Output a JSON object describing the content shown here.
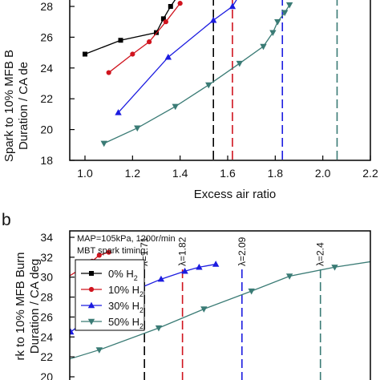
{
  "chart_data": [
    {
      "type": "line",
      "panel_label": "",
      "xlabel": "Excess air ratio",
      "ylabel_lines": [
        "Spark to 10% MFB B",
        "Duration / CA de"
      ],
      "xlim": [
        0.9,
        2.2
      ],
      "ylim": [
        18,
        28.6
      ],
      "x_ticks": [
        1.0,
        1.2,
        1.4,
        1.6,
        1.8,
        2.0,
        2.2
      ],
      "x_tick_labels": [
        "1.0",
        "1.2",
        "1.4",
        "1.6",
        "1.8",
        "2.0",
        "2.2"
      ],
      "y_ticks": [
        18,
        20,
        22,
        24,
        26,
        28
      ],
      "y_tick_labels": [
        "18",
        "20",
        "22",
        "24",
        "26",
        "28"
      ],
      "series": [
        {
          "name": "0% H2",
          "color": "#000000",
          "marker": "square",
          "x": [
            1.0,
            1.15,
            1.3,
            1.33,
            1.36,
            1.4
          ],
          "y": [
            24.9,
            25.8,
            26.3,
            27.2,
            28.0,
            28.9
          ]
        },
        {
          "name": "10% H2",
          "color": "#d0141e",
          "marker": "circle",
          "x": [
            1.1,
            1.2,
            1.27,
            1.34,
            1.4
          ],
          "y": [
            23.7,
            24.9,
            25.7,
            27.0,
            28.2
          ]
        },
        {
          "name": "30% H2",
          "color": "#1c1ce0",
          "marker": "triangle-up",
          "x": [
            1.14,
            1.35,
            1.54,
            1.62,
            1.66
          ],
          "y": [
            21.1,
            24.7,
            27.1,
            28.0,
            29.0
          ]
        },
        {
          "name": "50% H2",
          "color": "#3a7b75",
          "marker": "triangle-down",
          "x": [
            1.08,
            1.22,
            1.38,
            1.52,
            1.65,
            1.75,
            1.79,
            1.81,
            1.84,
            1.86
          ],
          "y": [
            19.1,
            20.1,
            21.5,
            22.9,
            24.3,
            25.4,
            26.3,
            27.0,
            27.6,
            28.1
          ]
        }
      ],
      "vlines": [
        {
          "x": 1.54,
          "color": "#000000"
        },
        {
          "x": 1.62,
          "color": "#d0141e"
        },
        {
          "x": 1.83,
          "color": "#1c1ce0"
        },
        {
          "x": 2.06,
          "color": "#3a7b75"
        }
      ]
    },
    {
      "type": "line",
      "panel_label": "b",
      "ylabel_lines": [
        "rk to 10% MFB Burn",
        "Duration / CA deg"
      ],
      "ylim": [
        20,
        34
      ],
      "y_ticks": [
        20,
        22,
        24,
        26,
        28,
        30,
        32,
        34
      ],
      "y_tick_labels": [
        "20",
        "22",
        "24",
        "26",
        "28",
        "30",
        "32",
        "34"
      ],
      "annotations": [
        "MAP=105kPa, 1200r/min",
        "MBT spark timing"
      ],
      "series": [
        {
          "name": "0% H2",
          "color": "#000000",
          "marker": "square",
          "x": [
            -0.12,
            -0.07,
            -0.01,
            0.04,
            0.16,
            0.22,
            0.28,
            0.32,
            0.38,
            0.42,
            0.47,
            0.53,
            0.58,
            0.63,
            0.7,
            0.74,
            0.78,
            0.82,
            0.86,
            0.9
          ],
          "y": [
            20.0,
            20.4,
            20.9,
            21.5,
            22.9,
            23.7,
            24.4,
            25.1,
            25.9,
            26.6,
            27.3,
            28.1,
            28.8,
            29.6,
            30.4,
            31.0,
            31.6,
            32.1,
            32.5,
            32.8
          ]
        },
        {
          "name": "10% H2",
          "color": "#d0141e",
          "marker": "circle",
          "x": [
            0.42,
            0.51,
            0.58,
            0.66,
            0.73,
            0.78,
            0.82,
            0.86,
            0.92,
            0.98,
            1.03,
            1.06,
            1.1
          ],
          "y": [
            20.5,
            22.0,
            23.3,
            24.6,
            26.1,
            27.1,
            28.0,
            28.9,
            29.9,
            30.8,
            31.6,
            32.2,
            32.5
          ]
        },
        {
          "name": "30% H2",
          "color": "#1c1ce0",
          "marker": "triangle-up",
          "x": [
            0.7,
            0.82,
            0.94,
            1.04,
            1.13,
            1.22,
            1.32,
            1.42,
            1.48,
            1.55
          ],
          "y": [
            20.2,
            22.3,
            24.5,
            26.3,
            27.6,
            28.8,
            29.8,
            30.6,
            31.0,
            31.3
          ]
        },
        {
          "name": "50% H2",
          "color": "#3a7b75",
          "marker": "triangle-down",
          "x": [
            0.76,
            1.06,
            1.31,
            1.5,
            1.7,
            1.86,
            2.05,
            2.24
          ],
          "y": [
            20.5,
            22.7,
            24.9,
            26.8,
            28.6,
            30.1,
            31.0,
            31.7
          ]
        }
      ],
      "vlines": [
        {
          "x": 1.25,
          "color": "#000000",
          "label": "λ=1.71"
        },
        {
          "x": 1.41,
          "color": "#d0141e",
          "label": "λ=1.82"
        },
        {
          "x": 1.66,
          "color": "#1c1ce0",
          "label": "λ=2.09"
        },
        {
          "x": 1.99,
          "color": "#3a7b75",
          "label": "λ=2.4"
        }
      ]
    }
  ]
}
